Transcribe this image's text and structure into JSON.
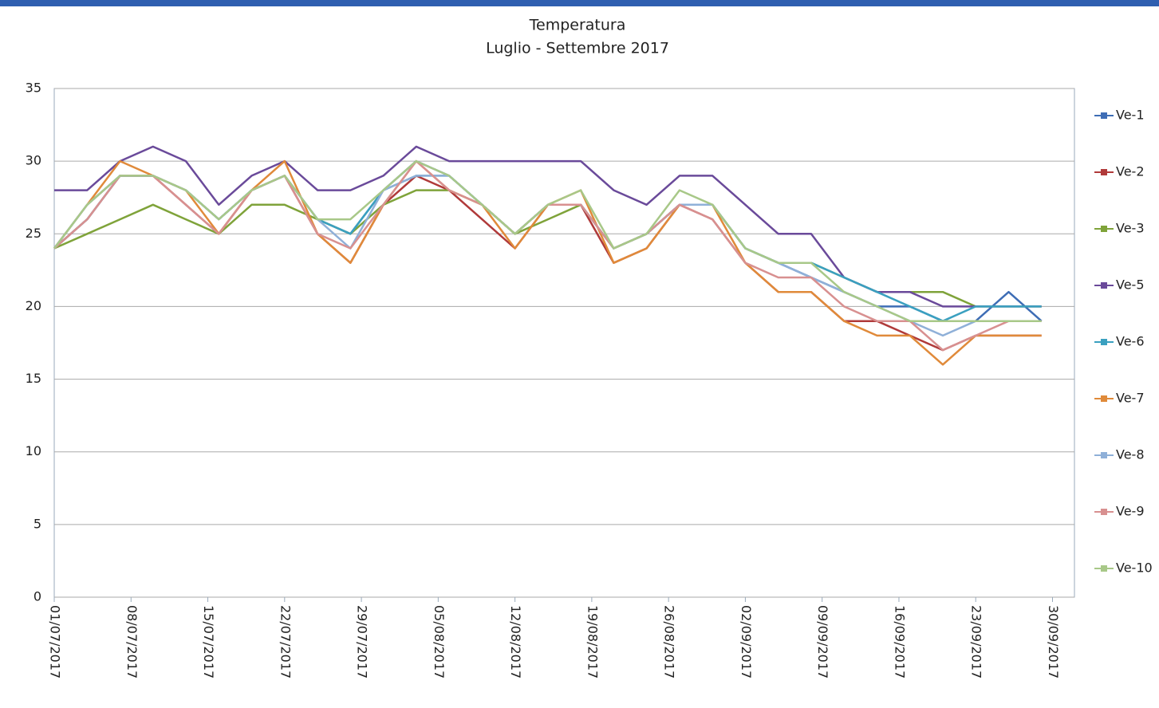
{
  "chart_data": {
    "type": "line",
    "title": "Temperatura",
    "subtitle": "Luglio - Settembre 2017",
    "x": [
      "01/07/2017",
      "04/07/2017",
      "07/07/2017",
      "10/07/2017",
      "13/07/2017",
      "16/07/2017",
      "19/07/2017",
      "22/07/2017",
      "25/07/2017",
      "28/07/2017",
      "31/07/2017",
      "03/08/2017",
      "06/08/2017",
      "09/08/2017",
      "12/08/2017",
      "15/08/2017",
      "18/08/2017",
      "21/08/2017",
      "24/08/2017",
      "27/08/2017",
      "30/08/2017",
      "02/09/2017",
      "05/09/2017",
      "08/09/2017",
      "11/09/2017",
      "14/09/2017",
      "17/09/2017",
      "20/09/2017",
      "23/09/2017",
      "26/09/2017",
      "29/09/2017"
    ],
    "series": [
      {
        "name": "Ve-1",
        "color": "#3e6db5",
        "values": [
          24,
          27,
          29,
          29,
          28,
          26,
          28,
          29,
          26,
          25,
          28,
          30,
          29,
          27,
          25,
          27,
          27,
          24,
          25,
          27,
          27,
          24,
          23,
          22,
          21,
          20,
          20,
          19,
          19,
          21,
          19
        ]
      },
      {
        "name": "Ve-2",
        "color": "#b03a3a",
        "values": [
          24,
          26,
          29,
          29,
          27,
          25,
          28,
          29,
          25,
          23,
          27,
          29,
          28,
          26,
          24,
          27,
          27,
          23,
          24,
          27,
          26,
          23,
          21,
          21,
          19,
          19,
          18,
          17,
          18,
          18,
          18
        ]
      },
      {
        "name": "Ve-3",
        "color": "#7fa33a",
        "values": [
          24,
          25,
          26,
          27,
          26,
          25,
          27,
          27,
          26,
          25,
          27,
          28,
          28,
          27,
          25,
          26,
          27,
          24,
          25,
          27,
          27,
          24,
          23,
          23,
          22,
          21,
          21,
          21,
          20,
          20,
          20
        ]
      },
      {
        "name": "Ve-5",
        "color": "#6a4a9a",
        "values": [
          28,
          28,
          30,
          31,
          30,
          27,
          29,
          30,
          28,
          28,
          29,
          31,
          30,
          30,
          30,
          30,
          30,
          28,
          27,
          29,
          29,
          27,
          25,
          25,
          22,
          21,
          21,
          20,
          20,
          20,
          20
        ]
      },
      {
        "name": "Ve-6",
        "color": "#3aa0c0",
        "values": [
          24,
          26,
          29,
          29,
          28,
          26,
          28,
          29,
          26,
          25,
          28,
          29,
          29,
          27,
          25,
          27,
          27,
          24,
          25,
          27,
          27,
          24,
          23,
          23,
          22,
          21,
          20,
          19,
          20,
          20,
          20
        ]
      },
      {
        "name": "Ve-7",
        "color": "#e08a3a",
        "values": [
          24,
          27,
          30,
          29,
          28,
          25,
          28,
          30,
          25,
          23,
          27,
          30,
          28,
          27,
          24,
          27,
          28,
          23,
          24,
          27,
          27,
          23,
          21,
          21,
          19,
          18,
          18,
          16,
          18,
          18,
          18
        ]
      },
      {
        "name": "Ve-8",
        "color": "#8fb0d8",
        "values": [
          24,
          27,
          29,
          29,
          28,
          26,
          28,
          29,
          26,
          24,
          28,
          29,
          29,
          27,
          25,
          27,
          27,
          24,
          25,
          27,
          27,
          24,
          23,
          22,
          21,
          20,
          19,
          18,
          19,
          19,
          19
        ]
      },
      {
        "name": "Ve-9",
        "color": "#d89090",
        "values": [
          24,
          26,
          29,
          29,
          27,
          25,
          28,
          29,
          25,
          24,
          27,
          30,
          28,
          27,
          25,
          27,
          27,
          24,
          25,
          27,
          26,
          23,
          22,
          22,
          20,
          19,
          19,
          17,
          18,
          19,
          19
        ]
      },
      {
        "name": "Ve-10",
        "color": "#a8c888",
        "values": [
          24,
          27,
          29,
          29,
          28,
          26,
          28,
          29,
          26,
          26,
          28,
          30,
          29,
          27,
          25,
          27,
          28,
          24,
          25,
          28,
          27,
          24,
          23,
          23,
          21,
          20,
          19,
          19,
          19,
          19,
          19
        ]
      }
    ],
    "xlim": [
      "01/07/2017",
      "02/10/2017"
    ],
    "xticks": [
      "01/07/2017",
      "08/07/2017",
      "15/07/2017",
      "22/07/2017",
      "29/07/2017",
      "05/08/2017",
      "12/08/2017",
      "19/08/2017",
      "26/08/2017",
      "02/09/2017",
      "09/09/2017",
      "16/09/2017",
      "23/09/2017",
      "30/09/2017"
    ],
    "ylim": [
      0,
      35
    ],
    "yticks": [
      0,
      5,
      10,
      15,
      20,
      25,
      30,
      35
    ],
    "grid": true,
    "legend": "right"
  }
}
